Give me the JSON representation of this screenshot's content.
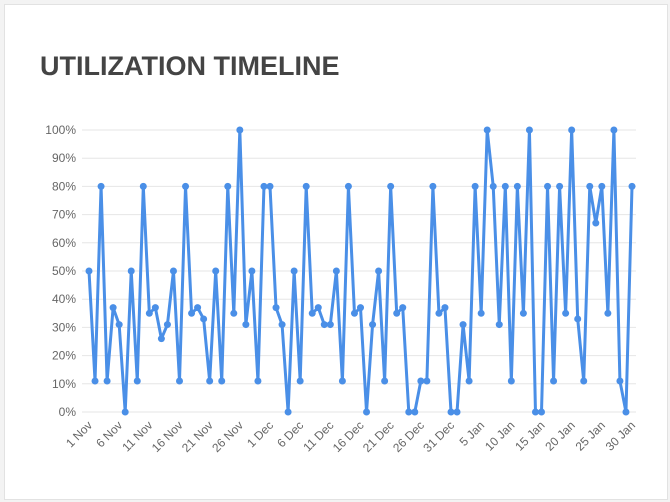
{
  "chart_data": {
    "type": "line",
    "title": "UTILIZATION TIMELINE",
    "categories": [
      "1 Nov",
      null,
      null,
      null,
      null,
      "6 Nov",
      null,
      null,
      null,
      null,
      "11 Nov",
      null,
      null,
      null,
      null,
      "16 Nov",
      null,
      null,
      null,
      null,
      "21 Nov",
      null,
      null,
      null,
      null,
      "26 Nov",
      null,
      null,
      null,
      null,
      "1 Dec",
      null,
      null,
      null,
      null,
      "6 Dec",
      null,
      null,
      null,
      null,
      "11 Dec",
      null,
      null,
      null,
      null,
      "16 Dec",
      null,
      null,
      null,
      null,
      "21 Dec",
      null,
      null,
      null,
      null,
      "26 Dec",
      null,
      null,
      null,
      null,
      "31 Dec",
      null,
      null,
      null,
      null,
      "5 Jan",
      null,
      null,
      null,
      null,
      "10 Jan",
      null,
      null,
      null,
      null,
      "15 Jan",
      null,
      null,
      null,
      null,
      "20 Jan",
      null,
      null,
      null,
      null,
      "25 Jan",
      null,
      null,
      null,
      null,
      "30 Jan"
    ],
    "series": [
      {
        "name": "Utilization",
        "color": "#4a8fe7",
        "values": [
          50,
          11,
          80,
          11,
          37,
          31,
          0,
          50,
          11,
          80,
          35,
          37,
          26,
          31,
          50,
          11,
          80,
          35,
          37,
          33,
          11,
          50,
          11,
          80,
          35,
          100,
          31,
          50,
          11,
          80,
          80,
          37,
          31,
          0,
          50,
          11,
          80,
          35,
          37,
          31,
          31,
          50,
          11,
          80,
          35,
          37,
          0,
          31,
          50,
          11,
          80,
          35,
          37,
          0,
          0,
          11,
          11,
          80,
          35,
          37,
          0,
          0,
          31,
          11,
          80,
          35,
          100,
          80,
          31,
          80,
          11,
          80,
          35,
          100,
          0,
          0,
          80,
          11,
          80,
          35,
          100,
          33,
          11,
          80,
          67,
          80,
          35,
          100,
          11,
          0,
          80
        ]
      }
    ],
    "ylim": [
      0,
      100
    ],
    "yticks": [
      {
        "value": 0,
        "label": "0%"
      },
      {
        "value": 10,
        "label": "10%"
      },
      {
        "value": 20,
        "label": "20%"
      },
      {
        "value": 30,
        "label": "30%"
      },
      {
        "value": 40,
        "label": "40%"
      },
      {
        "value": 50,
        "label": "50%"
      },
      {
        "value": 60,
        "label": "60%"
      },
      {
        "value": 70,
        "label": "70%"
      },
      {
        "value": 80,
        "label": "80%"
      },
      {
        "value": 90,
        "label": "90%"
      },
      {
        "value": 100,
        "label": "100%"
      }
    ],
    "grid": true
  }
}
